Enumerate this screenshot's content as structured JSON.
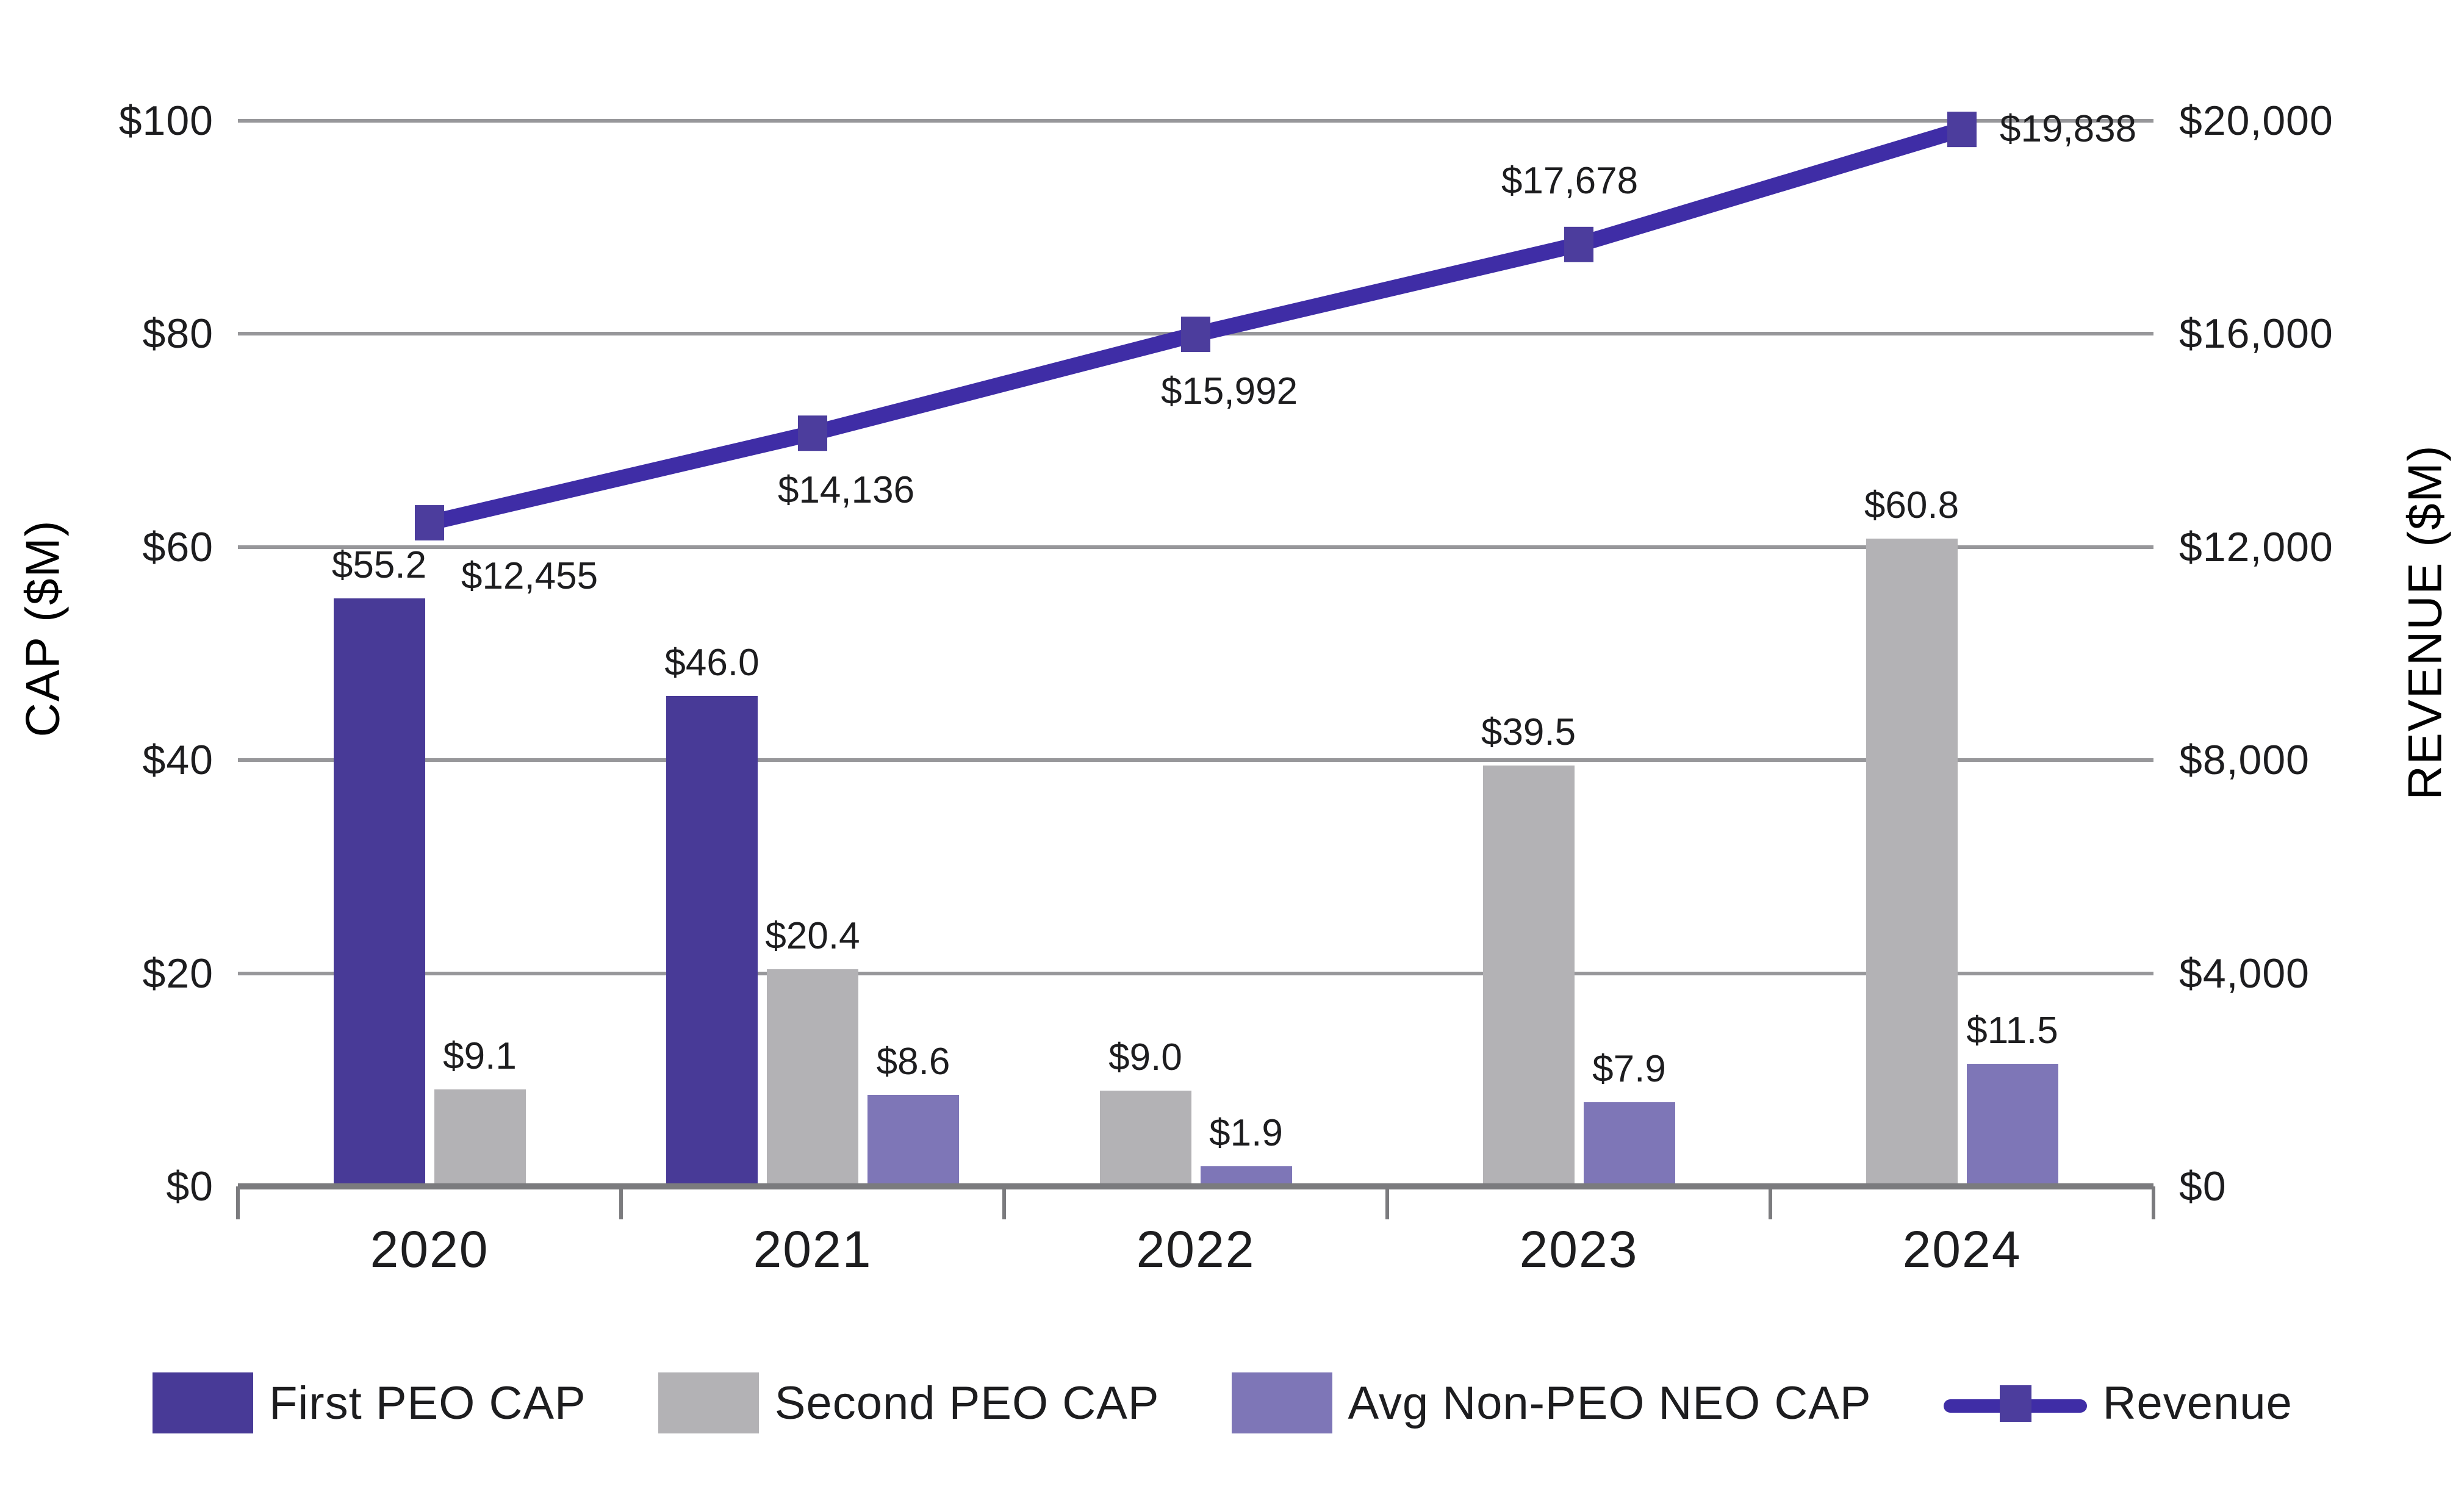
{
  "chart_data": {
    "type": "combo-bar-line",
    "categories": [
      "2020",
      "2021",
      "2022",
      "2023",
      "2024"
    ],
    "bar_series": [
      {
        "name": "First PEO CAP",
        "color": "#483a97",
        "values": [
          55.2,
          46.0,
          null,
          null,
          null
        ],
        "labels": [
          "$55.2",
          "$46.0",
          null,
          null,
          null
        ]
      },
      {
        "name": "Second PEO CAP",
        "color": "#b3b2b5",
        "values": [
          9.1,
          20.4,
          9.0,
          39.5,
          60.8
        ],
        "labels": [
          "$9.1",
          "$20.4",
          "$9.0",
          "$39.5",
          "$60.8"
        ]
      },
      {
        "name": "Avg Non-PEO NEO CAP",
        "color": "#7e76b7",
        "values": [
          null,
          8.6,
          1.9,
          7.9,
          11.5
        ],
        "labels": [
          null,
          "$8.6",
          "$1.9",
          "$7.9",
          "$11.5"
        ]
      }
    ],
    "line_series": {
      "name": "Revenue",
      "line_color": "#3f2da6",
      "marker_color": "#4c3d9d",
      "values": [
        12455,
        14136,
        15992,
        17678,
        19838
      ],
      "labels": [
        "$12,455",
        "$14,136",
        "$15,992",
        "$17,678",
        "$19,838"
      ],
      "label_positions": [
        "below-right",
        "below",
        "below",
        "above",
        "right"
      ]
    },
    "left_axis": {
      "title": "CAP ($M)",
      "min": 0,
      "max": 100,
      "ticks_top_to_bottom": [
        "$100",
        "$80",
        "$60",
        "$40",
        "$20",
        "$0"
      ]
    },
    "right_axis": {
      "title": "REVENUE ($M)",
      "min": 0,
      "max": 20000,
      "ticks_top_to_bottom": [
        "$20,000",
        "$16,000",
        "$12,000",
        "$8,000",
        "$4,000",
        "$0"
      ]
    },
    "grid": true,
    "legend_position": "bottom",
    "colors": {
      "gridline": "#97979a",
      "axis_line": "#7b7b7e",
      "text": "#1d1d1f"
    }
  }
}
